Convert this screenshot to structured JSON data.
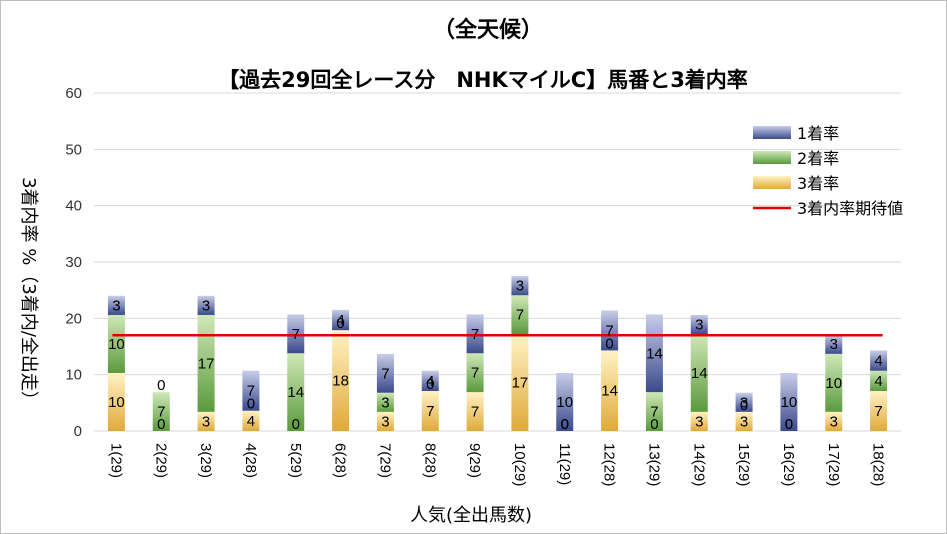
{
  "chart_data": {
    "type": "bar",
    "stacked": true,
    "title": "（全天候）",
    "subtitle": "【過去29回全レース分　NHKマイルC】馬番と3着内率",
    "xlabel": "人気(全出馬数)",
    "ylabel": "3着内率 %（3着内/全出走）",
    "ylim": [
      0,
      60
    ],
    "yticks": [
      0,
      10,
      20,
      30,
      40,
      50,
      60
    ],
    "grid": true,
    "legend_position": "top-right",
    "categories": [
      "1(29)",
      "2(29)",
      "3(29)",
      "4(28)",
      "5(29)",
      "6(28)",
      "7(29)",
      "8(28)",
      "9(29)",
      "10(29)",
      "11(29)",
      "12(28)",
      "13(29)",
      "14(29)",
      "15(29)",
      "16(29)",
      "17(29)",
      "18(28)"
    ],
    "series": [
      {
        "name": "3着率",
        "color": "#e0a93a",
        "values": [
          10.3,
          0,
          3.4,
          3.6,
          0,
          17.9,
          3.4,
          7.1,
          6.9,
          17.2,
          0,
          14.3,
          0,
          3.4,
          3.4,
          0,
          3.4,
          7.1
        ],
        "labels": [
          "10",
          "0",
          "3",
          "4",
          "0",
          "18",
          "3",
          "7",
          "7",
          "17",
          "0",
          "14",
          "0",
          "3",
          "3",
          "0",
          "3",
          "7"
        ]
      },
      {
        "name": "2着率",
        "color": "#5a9a3c",
        "values": [
          10.3,
          6.9,
          17.2,
          0,
          13.8,
          0,
          3.4,
          0,
          6.9,
          6.9,
          0,
          0,
          6.9,
          13.8,
          0,
          0,
          10.3,
          3.6
        ],
        "labels": [
          "10",
          "7",
          "17",
          "0",
          "14",
          "0",
          "3",
          "0",
          "7",
          "7",
          "0",
          "0",
          "7",
          "14",
          "0",
          "0",
          "10",
          "4"
        ]
      },
      {
        "name": "1着率",
        "color": "#3a4a8c",
        "values": [
          3.4,
          0,
          3.4,
          7.1,
          6.9,
          3.6,
          6.9,
          3.6,
          6.9,
          3.4,
          10.3,
          7.1,
          13.8,
          3.4,
          3.4,
          10.3,
          3.4,
          3.6
        ],
        "labels": [
          "3",
          "0",
          "3",
          "7",
          "7",
          "4",
          "7",
          "4",
          "7",
          "3",
          "10",
          "7",
          "14",
          "3",
          "3",
          "10",
          "3",
          "4"
        ]
      }
    ],
    "expected_line": {
      "name": "3着内率期待値",
      "color": "#e00000",
      "value": 17
    }
  }
}
